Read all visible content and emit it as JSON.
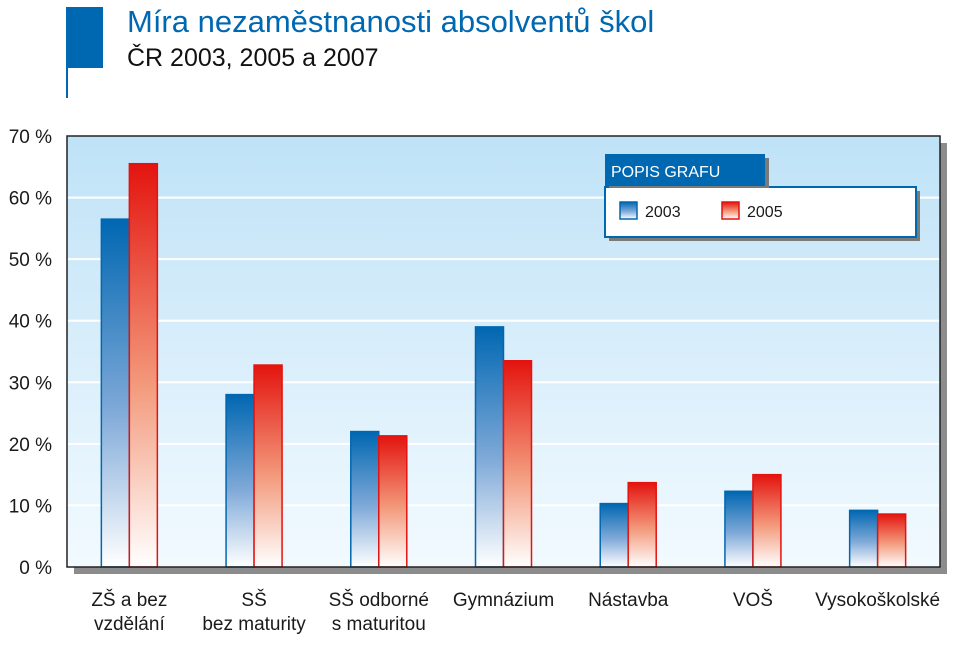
{
  "header": {
    "title": "Míra nezaměstnanosti absolventů škol",
    "subtitle": "ČR 2003, 2005 a 2007"
  },
  "legend": {
    "title": "POPIS GRAFU"
  },
  "colors": {
    "series_2003": "#0067b1",
    "series_2005": "#e3140f",
    "plot_bg_top": "#bfe2f7",
    "plot_bg_bottom": "#f2faff",
    "legend_title_bg": "#0067b1"
  },
  "chart_data": {
    "type": "bar",
    "categories": [
      [
        "ZŠ a bez",
        "vzdělání"
      ],
      [
        "SŠ",
        "bez maturity"
      ],
      [
        "SŠ odborné",
        "s maturitou"
      ],
      [
        "Gymnázium"
      ],
      [
        "Nástavba"
      ],
      [
        "VOŠ"
      ],
      [
        "Vysokoškolské"
      ]
    ],
    "series": [
      {
        "name": "2003",
        "values": [
          56.5,
          28,
          22,
          39,
          10.3,
          12.3,
          9.2
        ]
      },
      {
        "name": "2005",
        "values": [
          65.5,
          32.8,
          21.3,
          33.5,
          13.7,
          15,
          8.6
        ]
      }
    ],
    "ylim": [
      0,
      70
    ],
    "yticks": [
      "0 %",
      "10 %",
      "20 %",
      "30 %",
      "40 %",
      "50 %",
      "60 %",
      "70 %"
    ],
    "grid": true,
    "legend_position": "top-right"
  }
}
